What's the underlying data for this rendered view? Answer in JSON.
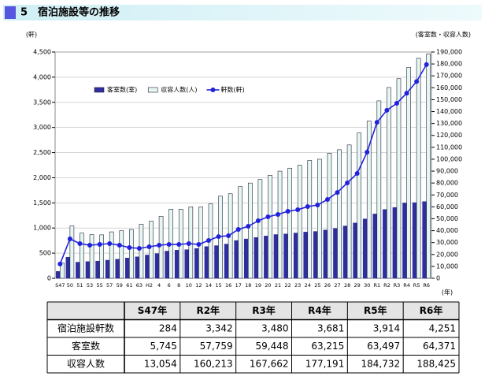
{
  "header": {
    "title": "5　宿泊施設等の推移"
  },
  "chart_data": {
    "type": "bar",
    "y_label": "(軒)",
    "y2_label": "(客室数・収容人数)",
    "x_label": "(年)",
    "categories": [
      "S47",
      "50",
      "51",
      "53",
      "55",
      "57",
      "59",
      "61",
      "63",
      "H2",
      "4",
      "6",
      "8",
      "10",
      "12",
      "14",
      "15",
      "16",
      "17",
      "18",
      "19",
      "20",
      "21",
      "22",
      "23",
      "24",
      "25",
      "26",
      "27",
      "28",
      "29",
      "30",
      "R1",
      "R2",
      "R3",
      "R4",
      "R5",
      "R6"
    ],
    "series": [
      {
        "name": "客室数(室)",
        "type": "bar",
        "axis": "y2",
        "color": "#2e2e9e",
        "values": [
          5745,
          17700,
          13500,
          14000,
          14400,
          15200,
          16000,
          17000,
          18000,
          19500,
          20700,
          22800,
          23600,
          24000,
          25000,
          26600,
          27400,
          28700,
          31700,
          33000,
          34200,
          35500,
          36700,
          37200,
          38000,
          38800,
          39300,
          40500,
          41800,
          43900,
          46400,
          49800,
          54000,
          57759,
          59448,
          63215,
          63497,
          64371
        ]
      },
      {
        "name": "収容人数(人)",
        "type": "bar",
        "axis": "y2",
        "color": "#e6f7ef",
        "values": [
          13054,
          44000,
          38000,
          36700,
          36500,
          39000,
          40000,
          41000,
          45500,
          48000,
          52000,
          58000,
          58000,
          60000,
          60000,
          62500,
          69000,
          71000,
          77000,
          80000,
          83000,
          86500,
          90000,
          92500,
          95000,
          99000,
          100000,
          105000,
          108000,
          112000,
          122000,
          132000,
          149000,
          160213,
          167662,
          177191,
          184732,
          188425
        ]
      },
      {
        "name": "軒数(軒)",
        "type": "line",
        "axis": "y",
        "color": "#2222dd",
        "values": [
          284,
          784,
          690,
          658,
          674,
          690,
          658,
          611,
          596,
          627,
          658,
          674,
          674,
          690,
          674,
          752,
          830,
          846,
          972,
          1034,
          1144,
          1223,
          1270,
          1332,
          1364,
          1426,
          1458,
          1567,
          1708,
          1897,
          2085,
          2508,
          3103,
          3342,
          3480,
          3681,
          3914,
          4251
        ]
      }
    ],
    "ylim": [
      0,
      4500
    ],
    "yticks": [
      0,
      500,
      {
        "value": 1000,
        "label": "1,000"
      },
      {
        "value": 1500,
        "label": "1,500"
      },
      {
        "value": 2000,
        "label": "2,000"
      },
      {
        "value": 2500,
        "label": "2,500"
      },
      {
        "value": 3000,
        "label": "3,000"
      },
      {
        "value": 3500,
        "label": "3,500"
      },
      {
        "value": 4000,
        "label": "4,000"
      },
      {
        "value": 4500,
        "label": "4,500"
      }
    ],
    "y2lim": [
      0,
      190000
    ],
    "y2ticks": [
      0,
      {
        "value": 10000,
        "label": "10,000"
      },
      {
        "value": 20000,
        "label": "20,000"
      },
      {
        "value": 30000,
        "label": "30,000"
      },
      {
        "value": 40000,
        "label": "40,000"
      },
      {
        "value": 50000,
        "label": "50,000"
      },
      {
        "value": 60000,
        "label": "60,000"
      },
      {
        "value": 70000,
        "label": "70,000"
      },
      {
        "value": 80000,
        "label": "80,000"
      },
      {
        "value": 90000,
        "label": "90,000"
      },
      {
        "value": 100000,
        "label": "100,000"
      },
      {
        "value": 110000,
        "label": "110,000"
      },
      {
        "value": 120000,
        "label": "120,000"
      },
      {
        "value": 130000,
        "label": "130,000"
      },
      {
        "value": 140000,
        "label": "140,000"
      },
      {
        "value": 150000,
        "label": "150,000"
      },
      {
        "value": 160000,
        "label": "160,000"
      },
      {
        "value": 170000,
        "label": "170,000"
      },
      {
        "value": 180000,
        "label": "180,000"
      },
      {
        "value": 190000,
        "label": "190,000"
      }
    ],
    "grid": true,
    "legend": "top-left"
  },
  "table": {
    "columns": [
      "S47年",
      "R2年",
      "R3年",
      "R4年",
      "R5年",
      "R6年"
    ],
    "rows": [
      {
        "label": "宿泊施設軒数",
        "cells": [
          "284",
          "3,342",
          "3,480",
          "3,681",
          "3,914",
          "4,251"
        ]
      },
      {
        "label": "客室数",
        "cells": [
          "5,745",
          "57,759",
          "59,448",
          "63,215",
          "63,497",
          "64,371"
        ]
      },
      {
        "label": "収容人数",
        "cells": [
          "13,054",
          "160,213",
          "167,662",
          "177,191",
          "184,732",
          "188,425"
        ]
      }
    ]
  }
}
